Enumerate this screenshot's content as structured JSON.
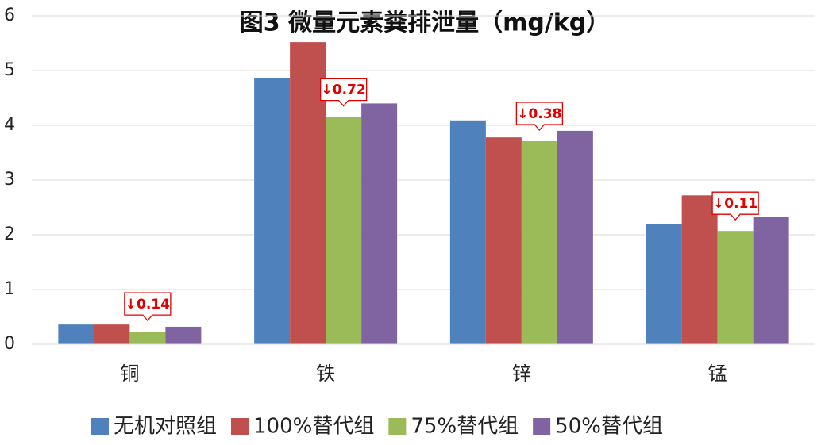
{
  "chart_data": {
    "type": "bar",
    "title": "图3  微量元素粪排泄量（mg/kg）",
    "categories": [
      "铜",
      "铁",
      "锌",
      "锰"
    ],
    "series": [
      {
        "name": "无机对照组",
        "color": "#4f81bd",
        "values": [
          0.36,
          4.87,
          4.09,
          2.19
        ]
      },
      {
        "name": "100%替代组",
        "color": "#c0504d",
        "values": [
          0.36,
          5.52,
          3.78,
          2.72
        ]
      },
      {
        "name": "75%替代组",
        "color": "#9bbb59",
        "values": [
          0.23,
          4.15,
          3.71,
          2.07
        ]
      },
      {
        "name": "50%替代组",
        "color": "#8064a2",
        "values": [
          0.32,
          4.4,
          3.9,
          2.32
        ]
      }
    ],
    "annotations": [
      "↓0.14",
      "↓0.72",
      "↓0.38",
      "↓0.11"
    ],
    "annotation_color": "#e00000",
    "ylim": [
      0,
      6
    ],
    "yticks": [
      0,
      1,
      2,
      3,
      4,
      5,
      6
    ],
    "grid": true,
    "legend": "bottom"
  }
}
